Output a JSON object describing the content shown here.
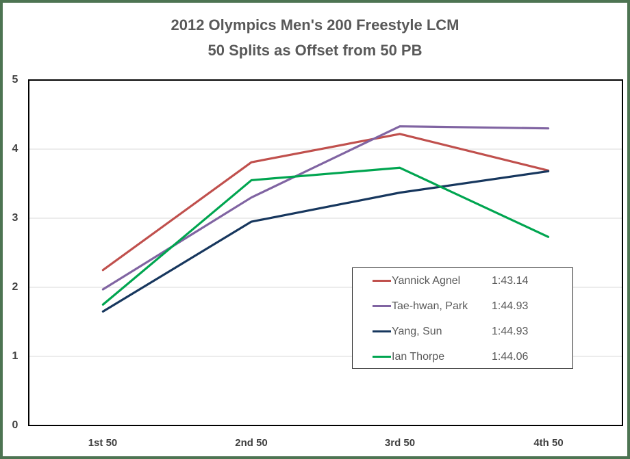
{
  "title": {
    "line1": "2012 Olympics Men's 200 Freestyle LCM",
    "line2": "50 Splits as Offset from 50 PB"
  },
  "chart_data": {
    "type": "line",
    "title": "2012 Olympics Men's 200 Freestyle LCM — 50 Splits as Offset from 50 PB",
    "categories": [
      "1st 50",
      "2nd 50",
      "3rd 50",
      "4th 50"
    ],
    "series": [
      {
        "name": "Yannick Agnel",
        "time": "1:43.14",
        "color": "#C0504D",
        "values": [
          2.25,
          3.81,
          4.22,
          3.69
        ]
      },
      {
        "name": "Tae-hwan, Park",
        "time": "1:44.93",
        "color": "#8064A2",
        "values": [
          1.97,
          3.3,
          4.33,
          4.3
        ]
      },
      {
        "name": "Yang, Sun",
        "time": "1:44.93",
        "color": "#17375E",
        "values": [
          1.65,
          2.95,
          3.37,
          3.68
        ]
      },
      {
        "name": "Ian Thorpe",
        "time": "1:44.06",
        "color": "#00A550",
        "values": [
          1.75,
          3.55,
          3.73,
          2.73
        ]
      }
    ],
    "xlabel": "",
    "ylabel": "",
    "ylim": [
      0,
      5
    ],
    "yticks": [
      "0",
      "1",
      "2",
      "3",
      "4",
      "5"
    ],
    "grid": "horizontal",
    "legend_position": "inside-right-middle",
    "gridline_color": "#D9D9D9",
    "frame_color": "#4D7452",
    "text_color": "#595959"
  }
}
